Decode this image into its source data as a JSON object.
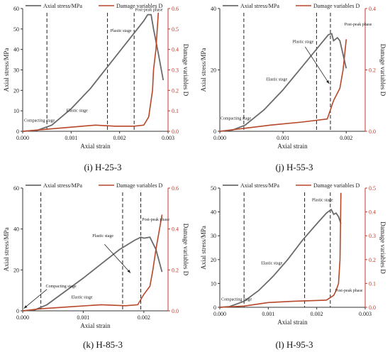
{
  "chart_data": [
    {
      "type": "line",
      "caption": "(i) H-25-3",
      "xlabel": "Axial strain",
      "ylabel": "Axial stress/MPa",
      "y2label": "Damage variables D",
      "xlim": [
        0,
        0.003
      ],
      "ylim": [
        0,
        60
      ],
      "y2lim": [
        0,
        0.6
      ],
      "xticks": [
        "0.000",
        "0.001",
        "0.002",
        "0.003"
      ],
      "yticks": [
        "0",
        "10",
        "20",
        "30",
        "40",
        "50",
        "60"
      ],
      "y2ticks": [
        "0.0",
        "0.1",
        "0.2",
        "0.3",
        "0.4",
        "0.5",
        "0.6"
      ],
      "legend": [
        "Axial stress/MPa",
        "Damage variables D"
      ],
      "stage_lines_x": [
        0.0005,
        0.00175,
        0.0023
      ],
      "annotations": [
        {
          "text": "Compacting stage",
          "x": 3e-05,
          "y": 4.7
        },
        {
          "text": "Elastic stage",
          "x": 0.0009,
          "y": 9.5
        },
        {
          "text": "Plastic stage",
          "x": 0.00181,
          "y": 48.5
        },
        {
          "text": "Post-peak phase",
          "x": 0.00232,
          "y": 58.8
        }
      ],
      "series": [
        {
          "name": "Axial stress/MPa",
          "axis": "left",
          "points": [
            [
              0,
              0
            ],
            [
              0.0003,
              0.5
            ],
            [
              0.0006,
              3
            ],
            [
              0.001,
              11
            ],
            [
              0.0014,
              21
            ],
            [
              0.0018,
              33
            ],
            [
              0.0022,
              45
            ],
            [
              0.0025,
              54
            ],
            [
              0.00258,
              57
            ],
            [
              0.00265,
              57
            ],
            [
              0.0027,
              50
            ],
            [
              0.0028,
              38
            ],
            [
              0.0029,
              25
            ]
          ]
        },
        {
          "name": "Damage variables D",
          "axis": "right",
          "points": [
            [
              0,
              0
            ],
            [
              0.0005,
              0.01
            ],
            [
              0.001,
              0.02
            ],
            [
              0.0015,
              0.03
            ],
            [
              0.0019,
              0.025
            ],
            [
              0.0023,
              0.025
            ],
            [
              0.0025,
              0.03
            ],
            [
              0.0026,
              0.07
            ],
            [
              0.00268,
              0.2
            ],
            [
              0.0027,
              0.3
            ],
            [
              0.00275,
              0.4
            ],
            [
              0.0028,
              0.58
            ]
          ]
        }
      ]
    },
    {
      "type": "line",
      "caption": "(j) H-55-3",
      "xlabel": "Axial strain",
      "ylabel": "Axial stress/MPa",
      "y2label": "Damage variables D",
      "xlim": [
        0,
        0.0023
      ],
      "ylim": [
        0,
        40
      ],
      "y2lim": [
        0,
        0.4
      ],
      "xticks": [
        "0.000",
        "0.001",
        "0.002"
      ],
      "yticks": [
        "0",
        "20",
        "40"
      ],
      "y2ticks": [
        "0.0",
        "0.2",
        "0.4"
      ],
      "legend": [
        "Axial stress/MPa",
        "Damage variables D"
      ],
      "stage_lines_x": [
        0.00038,
        0.00153,
        0.00175
      ],
      "annotations": [
        {
          "text": "Compacting stage",
          "x": 1e-05,
          "y": 3.8
        },
        {
          "text": "Elastic stage",
          "x": 0.00073,
          "y": 16.5
        },
        {
          "text": "Plastic stage",
          "x": 0.00115,
          "y": 28.8
        },
        {
          "text": "Post-peak phase",
          "x": 0.00197,
          "y": 34.5
        }
      ],
      "arrow": {
        "from": [
          0.00135,
          27.5
        ],
        "to": [
          0.00173,
          15.5
        ]
      },
      "series": [
        {
          "name": "Axial stress/MPa",
          "axis": "left",
          "points": [
            [
              0,
              0
            ],
            [
              0.0002,
              0.4
            ],
            [
              0.0004,
              2
            ],
            [
              0.0007,
              7
            ],
            [
              0.001,
              13.5
            ],
            [
              0.0013,
              21
            ],
            [
              0.0016,
              28.5
            ],
            [
              0.00172,
              31.5
            ],
            [
              0.00177,
              31.8
            ],
            [
              0.0018,
              29.5
            ],
            [
              0.00186,
              30.5
            ],
            [
              0.0019,
              29.5
            ],
            [
              0.002,
              20.5
            ]
          ]
        },
        {
          "name": "Damage variables D",
          "axis": "right",
          "points": [
            [
              0,
              0
            ],
            [
              0.0004,
              0.01
            ],
            [
              0.0008,
              0.02
            ],
            [
              0.0013,
              0.03
            ],
            [
              0.0017,
              0.04
            ],
            [
              0.00175,
              0.07
            ],
            [
              0.0018,
              0.1
            ],
            [
              0.0019,
              0.14
            ],
            [
              0.00195,
              0.2
            ],
            [
              0.002,
              0.3
            ]
          ]
        }
      ]
    },
    {
      "type": "line",
      "caption": "(k) H-85-3",
      "xlabel": "Axial strain",
      "ylabel": "Axial stress/MPa",
      "y2label": "Damage variables D",
      "xlim": [
        0,
        0.0024
      ],
      "ylim": [
        0,
        60
      ],
      "y2lim": [
        0,
        0.6
      ],
      "xticks": [
        "0.000",
        "0.001",
        "0.002"
      ],
      "yticks": [
        "0",
        "20",
        "40",
        "60"
      ],
      "y2ticks": [
        "0.0",
        "0.2",
        "0.4",
        "0.6"
      ],
      "legend": [
        "Axial stress/MPa",
        "Damage variables D"
      ],
      "stage_lines_x": [
        0.0003,
        0.00165,
        0.00195
      ],
      "annotations": [
        {
          "text": "Compacting stage",
          "x": 0.00038,
          "y": 11.5
        },
        {
          "text": "Elastic stage",
          "x": 0.0008,
          "y": 6.0
        },
        {
          "text": "Plastic stage",
          "x": 0.00115,
          "y": 36.0
        },
        {
          "text": "Post-peak phase",
          "x": 0.00197,
          "y": 44.0
        }
      ],
      "arrows": [
        {
          "from": [
            0.0004,
            10.5
          ],
          "to": [
            2e-05,
            1.2
          ]
        },
        {
          "from": [
            0.00135,
            32.5
          ],
          "to": [
            0.00178,
            18.5
          ]
        }
      ],
      "series": [
        {
          "name": "Axial stress/MPa",
          "axis": "left",
          "points": [
            [
              0,
              0
            ],
            [
              0.0002,
              0.5
            ],
            [
              0.0004,
              3
            ],
            [
              0.0007,
              9.5
            ],
            [
              0.001,
              16
            ],
            [
              0.0013,
              23
            ],
            [
              0.0016,
              30
            ],
            [
              0.00185,
              34.5
            ],
            [
              0.00195,
              36
            ],
            [
              0.002,
              35.5
            ],
            [
              0.0021,
              36
            ],
            [
              0.0022,
              30
            ],
            [
              0.0023,
              19
            ]
          ]
        },
        {
          "name": "Damage variables D",
          "axis": "right",
          "points": [
            [
              0,
              0
            ],
            [
              0.0003,
              0.01
            ],
            [
              0.0008,
              0.02
            ],
            [
              0.0013,
              0.03
            ],
            [
              0.0017,
              0.025
            ],
            [
              0.0019,
              0.03
            ],
            [
              0.002,
              0.08
            ],
            [
              0.0021,
              0.12
            ],
            [
              0.00215,
              0.2
            ],
            [
              0.0022,
              0.3
            ],
            [
              0.0023,
              0.47
            ]
          ]
        }
      ]
    },
    {
      "type": "line",
      "caption": "(l) H-95-3",
      "xlabel": "Axial strain",
      "ylabel": "Axial stress/MPa",
      "y2label": "Damage variables D",
      "xlim": [
        0,
        0.003
      ],
      "ylim": [
        0,
        50
      ],
      "y2lim": [
        0,
        0.5
      ],
      "xticks": [
        "0.000",
        "0.001",
        "0.002",
        "0.003"
      ],
      "yticks": [
        "0",
        "10",
        "20",
        "30",
        "40",
        "50"
      ],
      "y2ticks": [
        "0.0",
        "0.1",
        "0.2",
        "0.3",
        "0.4",
        "0.5"
      ],
      "legend": [
        "Axial stress/MPa",
        "Damage variables D"
      ],
      "stage_lines_x": [
        0.0005,
        0.00175,
        0.00228
      ],
      "annotations": [
        {
          "text": "Compacting stage",
          "x": 3e-05,
          "y": 2.8
        },
        {
          "text": "Elastic stage",
          "x": 0.00085,
          "y": 18.0
        },
        {
          "text": "Plastic stage",
          "x": 0.0019,
          "y": 44.5
        },
        {
          "text": "Post-peak phase",
          "x": 0.00238,
          "y": 6.5
        }
      ],
      "series": [
        {
          "name": "Axial stress/MPa",
          "axis": "left",
          "points": [
            [
              0,
              0
            ],
            [
              0.0002,
              0.3
            ],
            [
              0.0005,
              2.5
            ],
            [
              0.0008,
              7
            ],
            [
              0.0011,
              13
            ],
            [
              0.0014,
              20
            ],
            [
              0.0017,
              28
            ],
            [
              0.002,
              35
            ],
            [
              0.0022,
              39.5
            ],
            [
              0.0023,
              41
            ],
            [
              0.00235,
              39
            ],
            [
              0.0024,
              39.5
            ],
            [
              0.00245,
              38
            ],
            [
              0.0025,
              35
            ]
          ]
        },
        {
          "name": "Damage variables D",
          "axis": "right",
          "points": [
            [
              0,
              0
            ],
            [
              0.0005,
              0.005
            ],
            [
              0.001,
              0.02
            ],
            [
              0.0015,
              0.025
            ],
            [
              0.0022,
              0.03
            ],
            [
              0.00235,
              0.05
            ],
            [
              0.0024,
              0.07
            ],
            [
              0.00245,
              0.1
            ],
            [
              0.00248,
              0.2
            ],
            [
              0.0025,
              0.48
            ]
          ]
        }
      ]
    }
  ]
}
